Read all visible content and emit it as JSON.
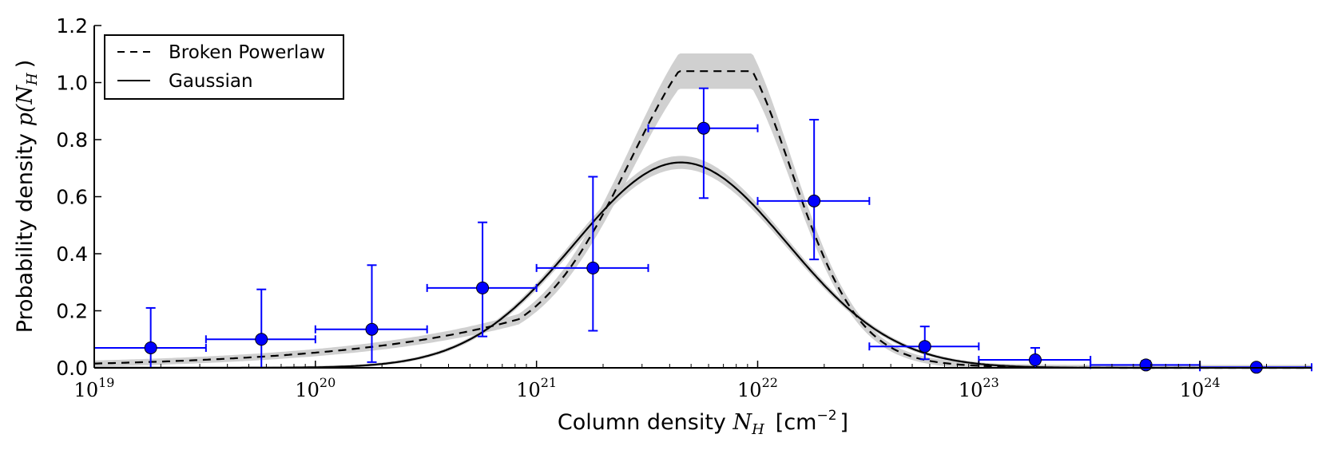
{
  "chart_data": {
    "type": "line",
    "xscale": "log",
    "xlim": [
      1e+19,
      3.2e+24
    ],
    "ylim": [
      0,
      1.2
    ],
    "ylabel_text": "Probability density ",
    "ylabel_math": "p(N",
    "ylabel_sub": "H",
    "ylabel_close": ")",
    "xlabel_text": "Column density ",
    "xlabel_math": "N",
    "xlabel_sub": "H",
    "xlabel_unit": "[cm",
    "xlabel_unit_exp": "−2",
    "xlabel_unit_close": "]",
    "y_ticks": [
      {
        "value": 0.0,
        "label": "0.0"
      },
      {
        "value": 0.2,
        "label": "0.2"
      },
      {
        "value": 0.4,
        "label": "0.4"
      },
      {
        "value": 0.6,
        "label": "0.6"
      },
      {
        "value": 0.8,
        "label": "0.8"
      },
      {
        "value": 1.0,
        "label": "1.0"
      },
      {
        "value": 1.2,
        "label": "1.2"
      }
    ],
    "x_ticks": [
      {
        "value": 1e+19,
        "base": "10",
        "exp": "19"
      },
      {
        "value": 1e+20,
        "base": "10",
        "exp": "20"
      },
      {
        "value": 1e+21,
        "base": "10",
        "exp": "21"
      },
      {
        "value": 1e+22,
        "base": "10",
        "exp": "22"
      },
      {
        "value": 1e+23,
        "base": "10",
        "exp": "23"
      },
      {
        "value": 1e+24,
        "base": "10",
        "exp": "24"
      }
    ],
    "legend": {
      "placement": "top-left",
      "entries": [
        {
          "label": "Broken Powerlaw",
          "style": "dashed"
        },
        {
          "label": "Gaussian",
          "style": "solid"
        }
      ]
    },
    "grid": false,
    "colors": {
      "data": "#0000ff",
      "model": "#000000",
      "band": "#c8c8c8"
    },
    "series": [
      {
        "name": "Broken Powerlaw",
        "style": "dashed",
        "model": "broken_powerlaw",
        "peak_x": 7e+21,
        "peak_y": 1.04,
        "band_halfwidth": 0.05
      },
      {
        "name": "Gaussian",
        "style": "solid",
        "model": "lognormal",
        "peak_x": 4.5e+21,
        "peak_y": 0.72,
        "band_halfwidth": 0.025
      }
    ],
    "data_points": [
      {
        "x": 1.8e+19,
        "y": 0.07,
        "xlo": 1e+19,
        "xhi": 3.2e+19,
        "ylo": 0.0,
        "yhi": 0.21
      },
      {
        "x": 5.7e+19,
        "y": 0.1,
        "xlo": 3.2e+19,
        "xhi": 1e+20,
        "ylo": 0.0,
        "yhi": 0.275
      },
      {
        "x": 1.8e+20,
        "y": 0.135,
        "xlo": 1e+20,
        "xhi": 3.2e+20,
        "ylo": 0.02,
        "yhi": 0.36
      },
      {
        "x": 5.7e+20,
        "y": 0.28,
        "xlo": 3.2e+20,
        "xhi": 1e+21,
        "ylo": 0.11,
        "yhi": 0.51
      },
      {
        "x": 1.8e+21,
        "y": 0.35,
        "xlo": 1e+21,
        "xhi": 3.2e+21,
        "ylo": 0.13,
        "yhi": 0.67
      },
      {
        "x": 5.7e+21,
        "y": 0.84,
        "xlo": 3.2e+21,
        "xhi": 1e+22,
        "ylo": 0.595,
        "yhi": 0.98
      },
      {
        "x": 1.8e+22,
        "y": 0.585,
        "xlo": 1e+22,
        "xhi": 3.2e+22,
        "ylo": 0.38,
        "yhi": 0.87
      },
      {
        "x": 5.7e+22,
        "y": 0.075,
        "xlo": 3.2e+22,
        "xhi": 1e+23,
        "ylo": 0.03,
        "yhi": 0.145
      },
      {
        "x": 1.8e+23,
        "y": 0.028,
        "xlo": 1e+23,
        "xhi": 3.2e+23,
        "ylo": 0.0,
        "yhi": 0.07
      },
      {
        "x": 5.7e+23,
        "y": 0.01,
        "xlo": 3.2e+23,
        "xhi": 1e+24,
        "ylo": 0.0,
        "yhi": 0.025
      },
      {
        "x": 1.8e+24,
        "y": 0.002,
        "xlo": 1e+24,
        "xhi": 3.2e+24,
        "ylo": 0.0,
        "yhi": 0.004
      }
    ]
  }
}
